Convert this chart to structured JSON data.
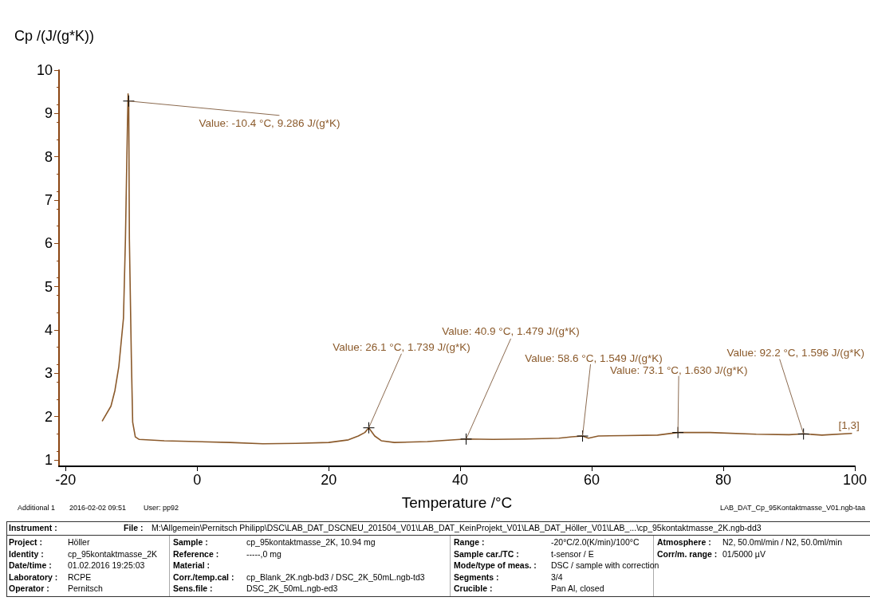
{
  "chart_data": {
    "type": "line",
    "xlabel": "Temperature /°C",
    "ylabel": "Cp /(J/(g*K))",
    "x": [
      -14.4,
      -13.1,
      -12.5,
      -11.9,
      -11.2,
      -10.9,
      -10.6,
      -10.5,
      -10.4,
      -10.3,
      -10.0,
      -9.8,
      -9.4,
      -8.8,
      -5,
      0,
      5,
      10,
      15,
      20,
      23,
      24.5,
      25.5,
      26.1,
      27,
      28,
      30,
      35,
      40.9,
      45,
      50,
      55,
      57,
      58.6,
      59.5,
      61,
      65,
      70,
      73.1,
      78,
      85,
      90,
      92.2,
      95,
      99.5
    ],
    "series": [
      {
        "color": "#8b5a2b",
        "values": [
          1.9,
          2.24,
          2.6,
          3.16,
          4.27,
          6.1,
          8.7,
          9.45,
          9.29,
          6.1,
          3.35,
          1.87,
          1.53,
          1.47,
          1.44,
          1.42,
          1.4,
          1.37,
          1.38,
          1.4,
          1.46,
          1.55,
          1.63,
          1.74,
          1.55,
          1.44,
          1.4,
          1.42,
          1.48,
          1.47,
          1.48,
          1.5,
          1.53,
          1.55,
          1.5,
          1.55,
          1.56,
          1.57,
          1.63,
          1.63,
          1.59,
          1.58,
          1.6,
          1.57,
          1.61
        ]
      }
    ],
    "xlim": [
      -21,
      100
    ],
    "xticks": [
      -20,
      0,
      20,
      40,
      60,
      80,
      100
    ],
    "ylim": [
      0.85,
      10
    ],
    "yticks": [
      1,
      2,
      3,
      4,
      5,
      6,
      7,
      8,
      9,
      10
    ],
    "grid": false,
    "marker": "none",
    "line_style": "solid",
    "annotations": [
      {
        "text": "Value: -10.4 °C, 9.286 J/(g*K)",
        "x": -10.4,
        "y": 9.286
      },
      {
        "text": "Value: 26.1 °C, 1.739 J/(g*K)",
        "x": 26.1,
        "y": 1.739
      },
      {
        "text": "Value: 40.9 °C, 1.479 J/(g*K)",
        "x": 40.9,
        "y": 1.479
      },
      {
        "text": "Value: 58.6 °C, 1.549 J/(g*K)",
        "x": 58.6,
        "y": 1.549
      },
      {
        "text": "Value: 73.1 °C, 1.630 J/(g*K)",
        "x": 73.1,
        "y": 1.63
      },
      {
        "text": "Value: 92.2 °C, 1.596 J/(g*K)",
        "x": 92.2,
        "y": 1.596
      },
      {
        "text": "[1,3]",
        "x": 99.5,
        "y": 1.61
      },
      "Additional 1",
      "2016-02-02 09:51",
      "User: pp92",
      "LAB_DAT_Cp_95Kontaktmasse_V01.ngb-taa",
      "Instrument :",
      "File :",
      "M:\\Allgemein\\Pernitsch Philipp\\DSC\\LAB_DAT_DSCNEU_201504_V01\\LAB_DAT_KeinProjekt_V01\\LAB_DAT_Höller_V01\\LAB_...\\cp_95kontaktmasse_2K.ngb-dd3",
      "Project :",
      "Identity :",
      "Date/time :",
      "Laboratory :",
      "Operator :",
      "Höller",
      "cp_95kontaktmasse_2K",
      "01.02.2016 19:25:03",
      "RCPE",
      "Pernitsch",
      "Sample :",
      "Reference :",
      "Material :",
      "Corr./temp.cal :",
      "Sens.file :",
      "cp_95kontaktmasse_2K, 10.94 mg",
      "-----,0 mg",
      "cp_Blank_2K.ngb-bd3 / DSC_2K_50mL.ngb-td3",
      "DSC_2K_50mL.ngb-ed3",
      "Range :",
      "Sample car./TC :",
      "Mode/type of meas. :",
      "Segments :",
      "Crucible :",
      "-20°C/2.0(K/min)/100°C",
      "t-sensor / E",
      "DSC / sample with correction",
      "3/4",
      "Pan Al, closed",
      "Atmosphere :",
      "Corr/m. range :",
      "N2, 50.0ml/min / N2, 50.0ml/min",
      "01/5000 µV"
    ]
  }
}
